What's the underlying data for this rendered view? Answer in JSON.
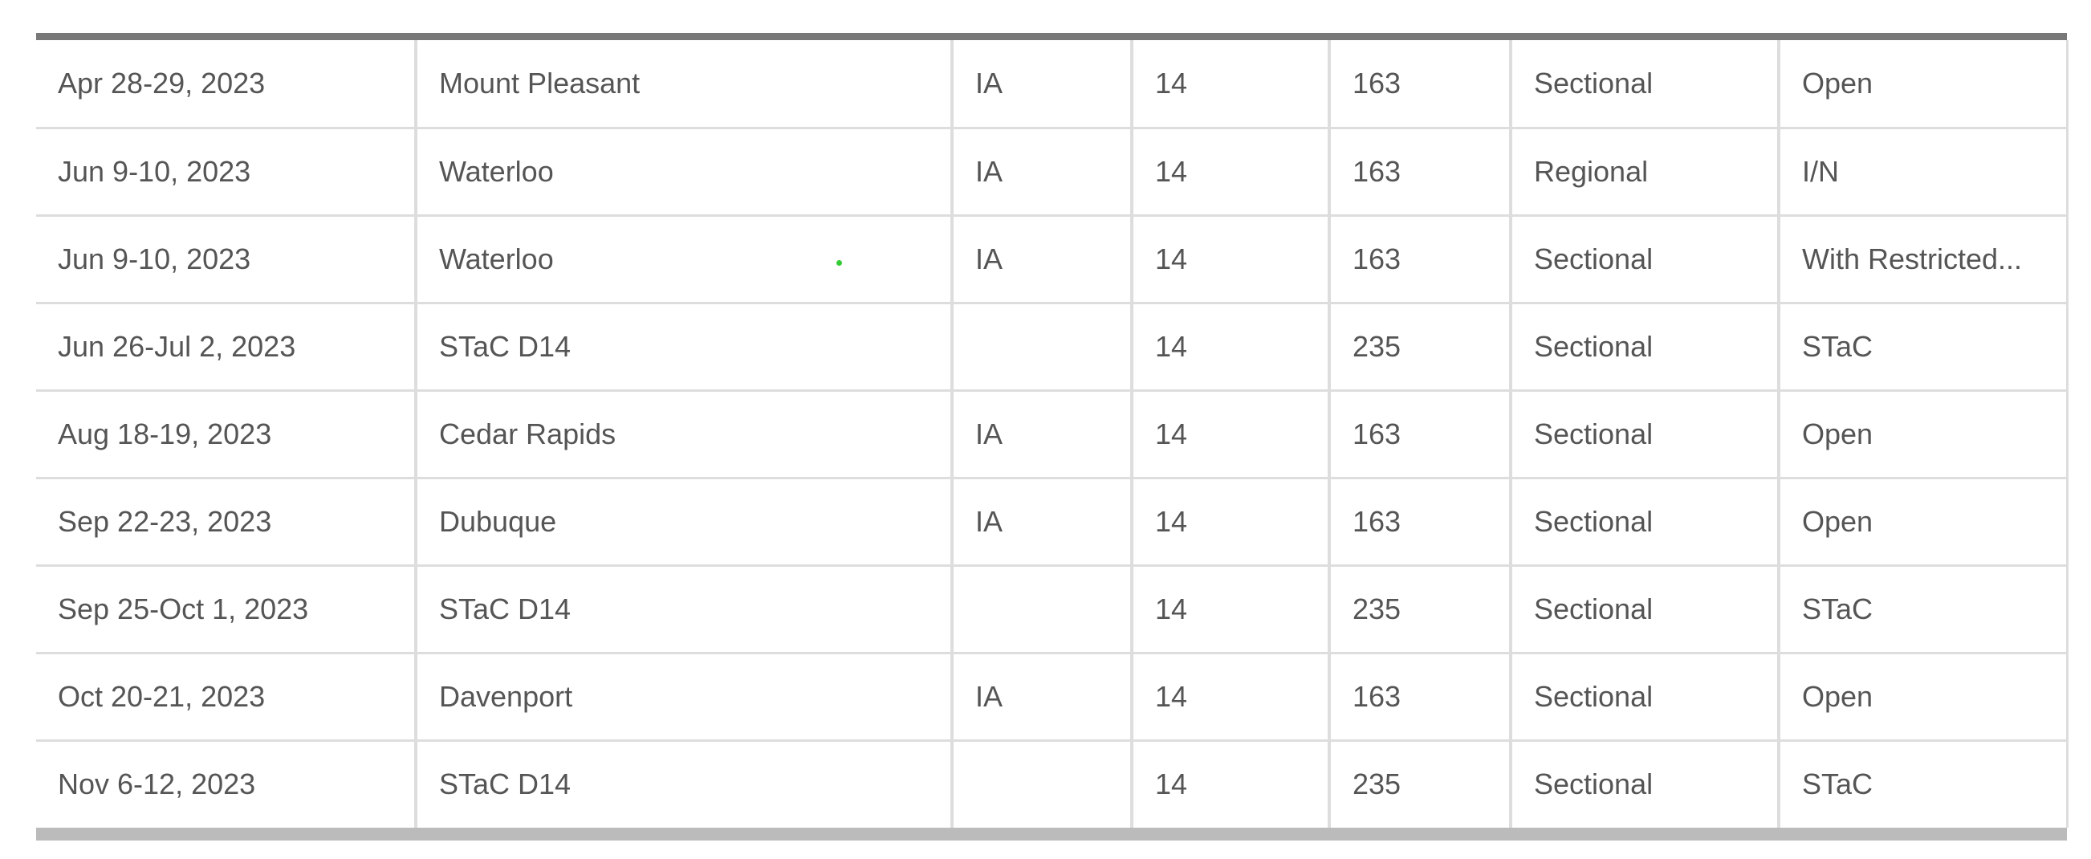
{
  "table": {
    "rows": [
      [
        "Apr 28-29, 2023",
        "Mount Pleasant",
        "IA",
        "14",
        "163",
        "Sectional",
        "Open"
      ],
      [
        "Jun 9-10, 2023",
        "Waterloo",
        "IA",
        "14",
        "163",
        "Regional",
        "I/N"
      ],
      [
        "Jun 9-10, 2023",
        "Waterloo",
        "IA",
        "14",
        "163",
        "Sectional",
        "With Restricted..."
      ],
      [
        "Jun 26-Jul 2, 2023",
        "STaC D14",
        null,
        "14",
        "235",
        "Sectional",
        "STaC"
      ],
      [
        "Aug 18-19, 2023",
        "Cedar Rapids",
        "IA",
        "14",
        "163",
        "Sectional",
        "Open"
      ],
      [
        "Sep 22-23, 2023",
        "Dubuque",
        "IA",
        "14",
        "163",
        "Sectional",
        "Open"
      ],
      [
        "Sep 25-Oct 1, 2023",
        "STaC D14",
        null,
        "14",
        "235",
        "Sectional",
        "STaC"
      ],
      [
        "Oct 20-21, 2023",
        "Davenport",
        "IA",
        "14",
        "163",
        "Sectional",
        "Open"
      ],
      [
        "Nov 6-12, 2023",
        "STaC D14",
        null,
        "14",
        "235",
        "Sectional",
        "STaC"
      ]
    ]
  }
}
